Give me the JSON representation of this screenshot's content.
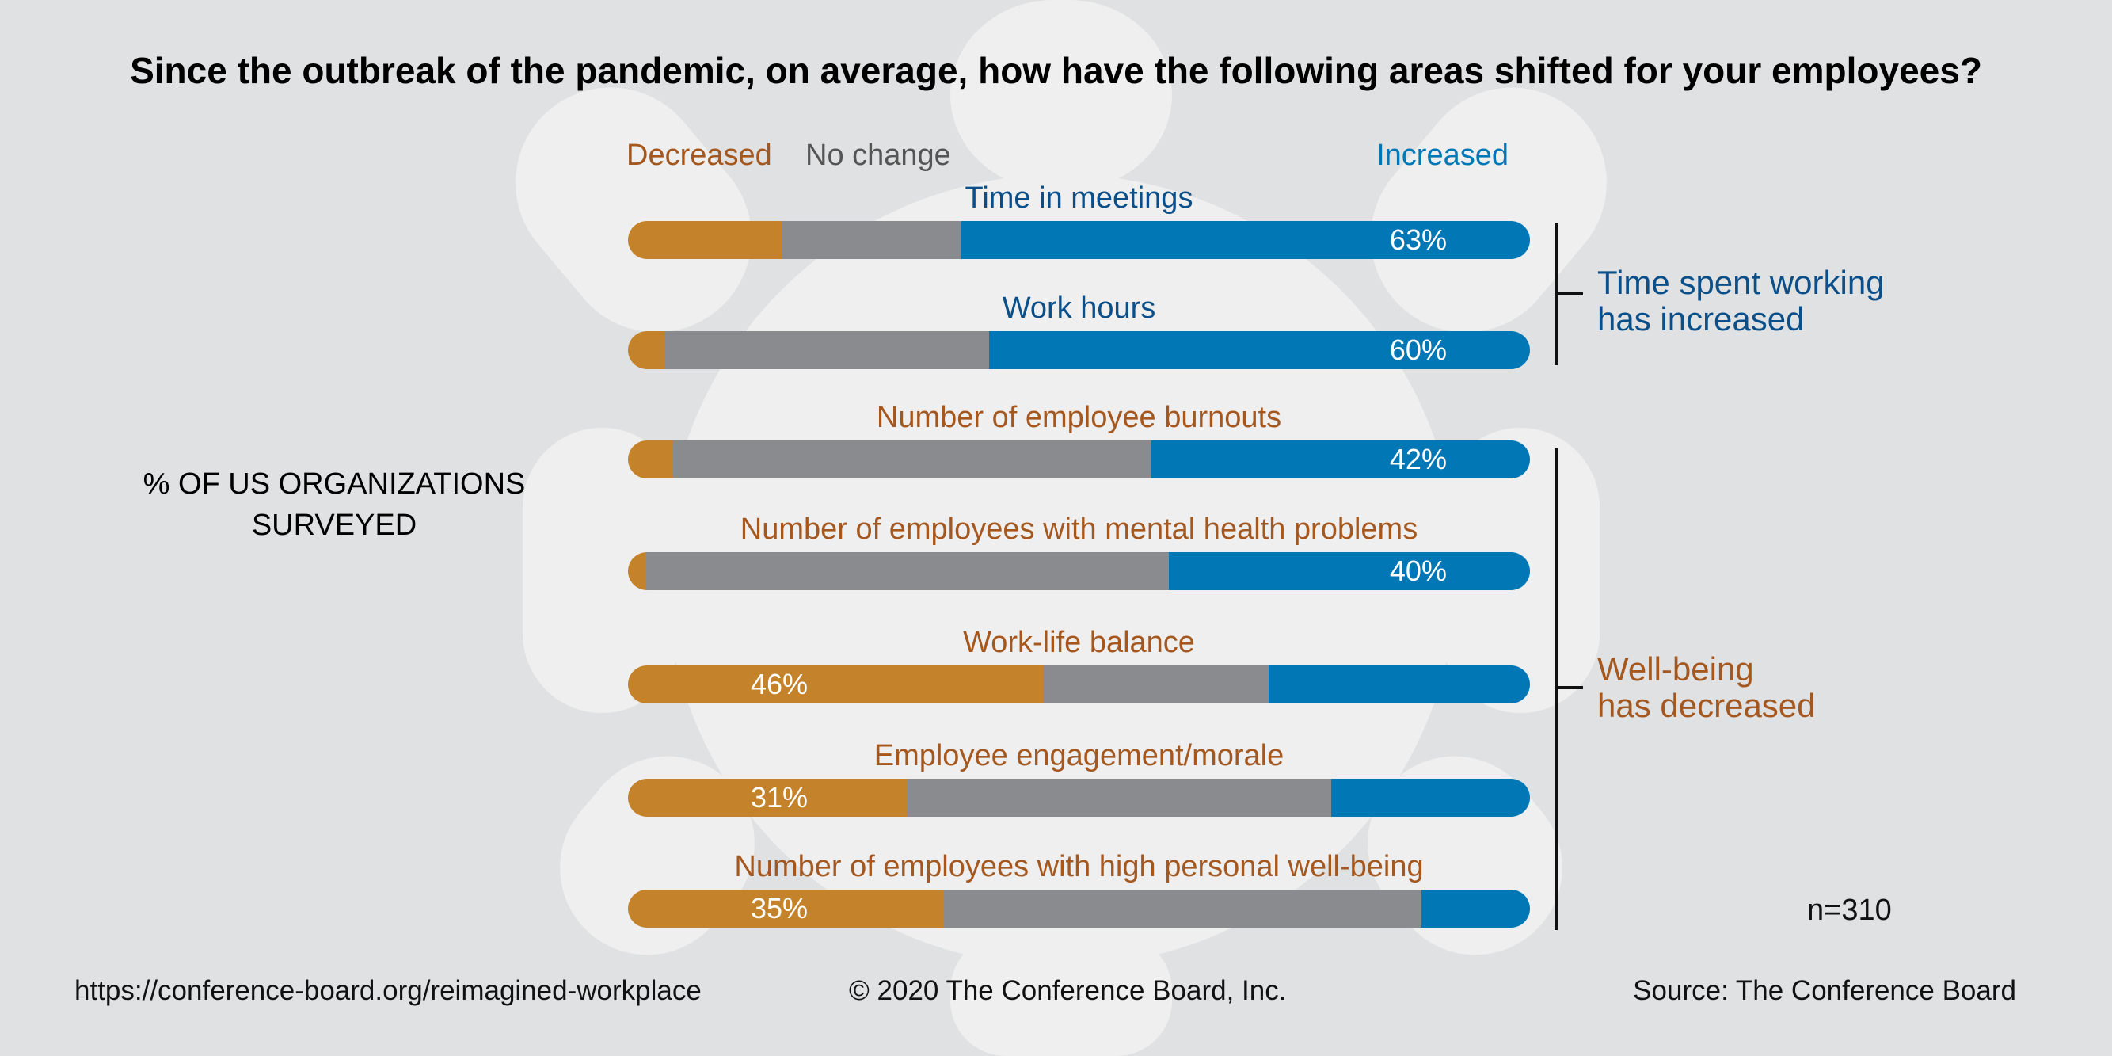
{
  "colors": {
    "decreased": "#c4822b",
    "no_change": "#8a8b8e",
    "increased": "#0277b5",
    "decreased_text": "#a4581f",
    "no_change_text": "#555555",
    "increased_text": "#0277b5",
    "label_blue": "#0b4f8a"
  },
  "footer": {
    "url": "https://conference-board.org/reimagined-workplace",
    "copyright": "© 2020 The Conference Board, Inc.",
    "source": "Source: The Conference Board"
  },
  "chart_data": {
    "type": "bar",
    "orientation": "horizontal-stacked-100",
    "title": "Since the outbreak of the pandemic, on average, how have the following areas shifted for your employees?",
    "ylabel": "% OF US ORGANIZATIONS SURVEYED",
    "note": "n=310",
    "legend": {
      "placement": "top",
      "entries": [
        "Decreased",
        "No change",
        "Increased"
      ]
    },
    "series": [
      {
        "name": "Decreased",
        "values": [
          17,
          4,
          5,
          2,
          46,
          31,
          35
        ]
      },
      {
        "name": "No change",
        "values": [
          20,
          36,
          53,
          58,
          25,
          47,
          53
        ]
      },
      {
        "name": "Increased",
        "values": [
          63,
          60,
          42,
          40,
          29,
          22,
          12
        ]
      }
    ],
    "categories": [
      "Time in meetings",
      "Work hours",
      "Number of employee burnouts",
      "Number of employees with mental health problems",
      "Work-life balance",
      "Employee engagement/morale",
      "Number of employees with high personal well-being"
    ],
    "category_label_color": [
      "blue",
      "blue",
      "brown",
      "brown",
      "brown",
      "brown",
      "brown"
    ],
    "data_labels": [
      {
        "series": "Increased",
        "text": "63%"
      },
      {
        "series": "Increased",
        "text": "60%"
      },
      {
        "series": "Increased",
        "text": "42%"
      },
      {
        "series": "Increased",
        "text": "40%"
      },
      {
        "series": "Decreased",
        "text": "46%"
      },
      {
        "series": "Decreased",
        "text": "31%"
      },
      {
        "series": "Decreased",
        "text": "35%"
      }
    ],
    "groups": [
      {
        "label_line1": "Time spent working",
        "label_line2": "has increased",
        "categories": [
          0,
          1
        ]
      },
      {
        "label_line1": "Well-being",
        "label_line2": "has decreased",
        "categories": [
          2,
          3,
          4,
          5,
          6
        ]
      }
    ]
  }
}
